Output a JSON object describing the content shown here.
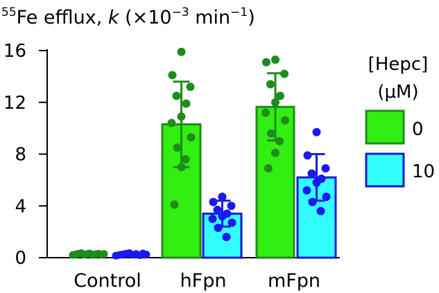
{
  "chart_data": {
    "type": "bar",
    "ylabel_prefix": "55",
    "ylabel_main": "Fe efflux, ",
    "ylabel_k": "k",
    "ylabel_open": " (×10",
    "ylabel_exp": "−3",
    "ylabel_unit": " min",
    "ylabel_exp2": "−1",
    "ylabel_close": ")",
    "ylim": [
      0,
      16
    ],
    "yticks": [
      "0",
      "4",
      "8",
      "12",
      "16"
    ],
    "categories": [
      "Control",
      "hFpn",
      "mFpn"
    ],
    "legend": {
      "title_line1": "[Hepc]",
      "title_line2": "(μM)",
      "position": "right"
    },
    "series": [
      {
        "name": "0",
        "fill": "#33ee11",
        "stroke": "#1e8c1e",
        "point_color": "#1e8c1e",
        "values": [
          0.15,
          10.3,
          11.65
        ],
        "errors": [
          0.05,
          3.3,
          2.6
        ],
        "points": [
          [
            0.1,
            0.15,
            0.2,
            0.25,
            0.12,
            0.18,
            0.22,
            0.1,
            0.16,
            0.2,
            0.14,
            0.18
          ],
          [
            15.9,
            14.1,
            13.2,
            12.5,
            11.9,
            10.9,
            10.4,
            9.3,
            8.5,
            7.6,
            7.0,
            4.1
          ],
          [
            15.3,
            15.1,
            14.2,
            13.4,
            12.5,
            12.0,
            11.2,
            10.6,
            9.6,
            9.0,
            8.1,
            6.9
          ]
        ]
      },
      {
        "name": "10",
        "fill": "#33ffff",
        "stroke": "#1a1ad0",
        "point_color": "#1a1aee",
        "values": [
          0.15,
          3.4,
          6.2
        ],
        "errors": [
          0.05,
          1.0,
          1.8
        ],
        "points": [
          [
            0.05,
            0.1,
            0.15,
            0.2,
            0.25,
            0.12,
            0.18,
            0.08,
            0.22,
            0.14
          ],
          [
            4.7,
            4.3,
            4.0,
            3.7,
            3.4,
            3.2,
            3.0,
            2.7,
            2.3,
            1.6
          ],
          [
            9.7,
            7.9,
            6.9,
            6.5,
            6.1,
            5.8,
            5.2,
            4.7,
            4.3,
            3.6
          ]
        ]
      }
    ]
  }
}
